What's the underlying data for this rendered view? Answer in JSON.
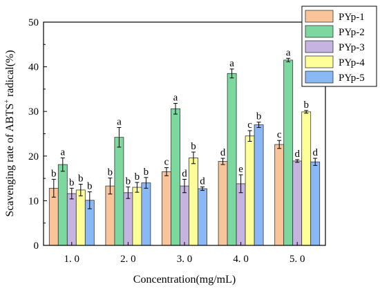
{
  "chart_data": {
    "type": "bar",
    "title": "",
    "xlabel": "Concentration(mg/mL)",
    "ylabel_prefix": "Scavenging rate of  ABTS",
    "ylabel_sup": "+",
    "ylabel_suffix": " radical(%)",
    "ylim": [
      0,
      50
    ],
    "yticks": [
      0,
      10,
      20,
      30,
      40,
      50
    ],
    "categories": [
      "1. 0",
      "2. 0",
      "3. 0",
      "4. 0",
      "5. 0"
    ],
    "grid": false,
    "legend_position": "top-right",
    "series": [
      {
        "name": "PYp-1",
        "color": "#f9c49a",
        "values": [
          12.8,
          13.3,
          16.5,
          18.8,
          22.6
        ],
        "errors": [
          2.0,
          1.8,
          0.9,
          0.7,
          0.9
        ],
        "letters": [
          "b",
          "b",
          "c",
          "d",
          "c"
        ]
      },
      {
        "name": "PYp-2",
        "color": "#7dd8a0",
        "values": [
          18.1,
          24.2,
          30.6,
          38.5,
          41.5
        ],
        "errors": [
          1.5,
          2.2,
          1.2,
          1.0,
          0.4
        ],
        "letters": [
          "a",
          "a",
          "a",
          "a",
          "a"
        ]
      },
      {
        "name": "PYp-3",
        "color": "#c5b3e0",
        "values": [
          11.6,
          11.8,
          13.3,
          13.8,
          18.9
        ],
        "errors": [
          1.2,
          1.3,
          1.5,
          2.0,
          0.3
        ],
        "letters": [
          "b",
          "b",
          "d",
          "e",
          "d"
        ]
      },
      {
        "name": "PYp-4",
        "color": "#ffff99",
        "values": [
          12.4,
          13.0,
          19.6,
          24.5,
          29.9
        ],
        "errors": [
          1.3,
          1.1,
          1.3,
          1.2,
          0.3
        ],
        "letters": [
          "b",
          "b",
          "b",
          "c",
          "b"
        ]
      },
      {
        "name": "PYp-5",
        "color": "#8ab8f5",
        "values": [
          10.1,
          14.0,
          12.7,
          27.0,
          18.7
        ],
        "errors": [
          1.9,
          1.2,
          0.4,
          0.6,
          0.8
        ],
        "letters": [
          "b",
          "b",
          "d",
          "b",
          "d"
        ]
      }
    ]
  }
}
